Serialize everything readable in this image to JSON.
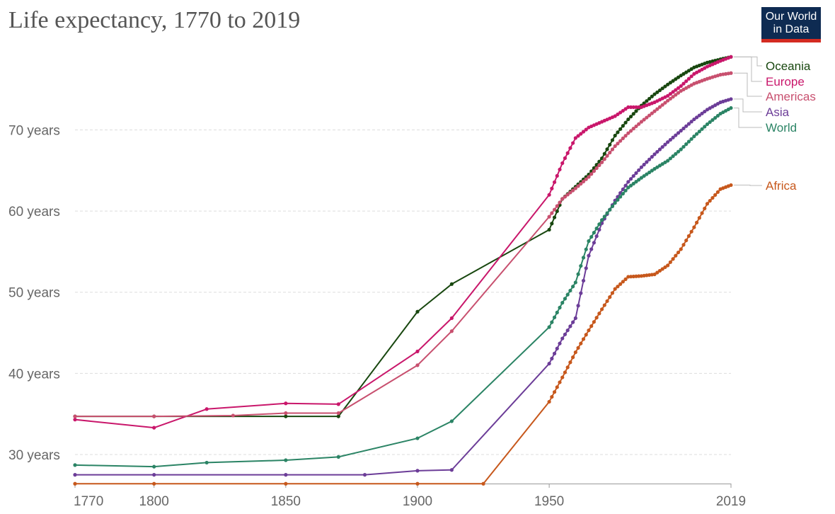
{
  "header": {
    "title": "Life expectancy, 1770 to 2019",
    "logo_line1": "Our World",
    "logo_line2": "in Data"
  },
  "chart_data": {
    "type": "line",
    "title": "Life expectancy, 1770 to 2019",
    "xlabel": "",
    "ylabel": "",
    "xlim": [
      1770,
      2019
    ],
    "ylim": [
      26.5,
      80
    ],
    "x_ticks": [
      {
        "value": 1770,
        "label": "1770"
      },
      {
        "value": 1800,
        "label": "1800"
      },
      {
        "value": 1850,
        "label": "1850"
      },
      {
        "value": 1900,
        "label": "1900"
      },
      {
        "value": 1950,
        "label": "1950"
      },
      {
        "value": 2019,
        "label": "2019"
      }
    ],
    "y_ticks": [
      {
        "value": 30,
        "label": "30 years"
      },
      {
        "value": 40,
        "label": "40 years"
      },
      {
        "value": 50,
        "label": "50 years"
      },
      {
        "value": 60,
        "label": "60 years"
      },
      {
        "value": 70,
        "label": "70 years"
      }
    ],
    "grid": true,
    "legend": "right, labels at line ends",
    "series": [
      {
        "name": "Oceania",
        "color": "#18470f",
        "points": [
          [
            1770,
            34.7
          ],
          [
            1800,
            34.7
          ],
          [
            1850,
            34.7
          ],
          [
            1870,
            34.7
          ],
          [
            1900,
            47.6
          ],
          [
            1913,
            51.0
          ],
          [
            1950,
            57.7
          ],
          [
            1955,
            61.5
          ],
          [
            1960,
            63.0
          ],
          [
            1965,
            64.5
          ],
          [
            1970,
            66.5
          ],
          [
            1975,
            69.3
          ],
          [
            1980,
            71.3
          ],
          [
            1985,
            73.0
          ],
          [
            1990,
            74.4
          ],
          [
            1995,
            75.6
          ],
          [
            2000,
            76.7
          ],
          [
            2005,
            77.7
          ],
          [
            2010,
            78.3
          ],
          [
            2015,
            78.7
          ],
          [
            2019,
            79.0
          ]
        ]
      },
      {
        "name": "Europe",
        "color": "#c9176b",
        "points": [
          [
            1770,
            34.3
          ],
          [
            1800,
            33.3
          ],
          [
            1820,
            35.6
          ],
          [
            1850,
            36.3
          ],
          [
            1870,
            36.2
          ],
          [
            1900,
            42.7
          ],
          [
            1913,
            46.8
          ],
          [
            1950,
            62.0
          ],
          [
            1955,
            65.9
          ],
          [
            1960,
            69.0
          ],
          [
            1965,
            70.3
          ],
          [
            1970,
            71.0
          ],
          [
            1975,
            71.7
          ],
          [
            1980,
            72.8
          ],
          [
            1985,
            72.8
          ],
          [
            1990,
            73.4
          ],
          [
            1995,
            74.2
          ],
          [
            2000,
            75.4
          ],
          [
            2005,
            76.9
          ],
          [
            2010,
            77.8
          ],
          [
            2015,
            78.5
          ],
          [
            2019,
            79.0
          ]
        ]
      },
      {
        "name": "Americas",
        "color": "#c8506f",
        "points": [
          [
            1770,
            34.7
          ],
          [
            1800,
            34.7
          ],
          [
            1830,
            34.8
          ],
          [
            1850,
            35.1
          ],
          [
            1870,
            35.1
          ],
          [
            1900,
            41.0
          ],
          [
            1913,
            45.2
          ],
          [
            1950,
            59.3
          ],
          [
            1955,
            61.5
          ],
          [
            1960,
            62.8
          ],
          [
            1965,
            64.2
          ],
          [
            1970,
            66.0
          ],
          [
            1975,
            68.0
          ],
          [
            1980,
            69.6
          ],
          [
            1985,
            71.0
          ],
          [
            1990,
            72.3
          ],
          [
            1995,
            73.6
          ],
          [
            2000,
            74.8
          ],
          [
            2005,
            75.7
          ],
          [
            2010,
            76.3
          ],
          [
            2015,
            76.8
          ],
          [
            2019,
            77.0
          ]
        ]
      },
      {
        "name": "Asia",
        "color": "#6c3d98",
        "points": [
          [
            1770,
            27.5
          ],
          [
            1800,
            27.5
          ],
          [
            1850,
            27.5
          ],
          [
            1880,
            27.5
          ],
          [
            1900,
            28.0
          ],
          [
            1913,
            28.1
          ],
          [
            1950,
            41.2
          ],
          [
            1955,
            44.3
          ],
          [
            1960,
            46.8
          ],
          [
            1965,
            54.5
          ],
          [
            1970,
            58.5
          ],
          [
            1975,
            61.3
          ],
          [
            1980,
            63.6
          ],
          [
            1985,
            65.4
          ],
          [
            1990,
            67.0
          ],
          [
            1995,
            68.5
          ],
          [
            2000,
            69.9
          ],
          [
            2005,
            71.3
          ],
          [
            2010,
            72.5
          ],
          [
            2015,
            73.4
          ],
          [
            2019,
            73.8
          ]
        ]
      },
      {
        "name": "World",
        "color": "#2b8465",
        "points": [
          [
            1770,
            28.7
          ],
          [
            1800,
            28.5
          ],
          [
            1820,
            29.0
          ],
          [
            1850,
            29.3
          ],
          [
            1870,
            29.7
          ],
          [
            1900,
            32.0
          ],
          [
            1913,
            34.1
          ],
          [
            1950,
            45.7
          ],
          [
            1955,
            48.7
          ],
          [
            1960,
            51.2
          ],
          [
            1965,
            56.3
          ],
          [
            1970,
            58.9
          ],
          [
            1975,
            61.0
          ],
          [
            1980,
            62.9
          ],
          [
            1985,
            64.1
          ],
          [
            1990,
            65.2
          ],
          [
            1995,
            66.2
          ],
          [
            2000,
            67.6
          ],
          [
            2005,
            69.2
          ],
          [
            2010,
            70.7
          ],
          [
            2015,
            72.0
          ],
          [
            2019,
            72.7
          ]
        ]
      },
      {
        "name": "Africa",
        "color": "#c7581c",
        "points": [
          [
            1770,
            26.4
          ],
          [
            1800,
            26.4
          ],
          [
            1850,
            26.4
          ],
          [
            1900,
            26.4
          ],
          [
            1925,
            26.4
          ],
          [
            1950,
            36.5
          ],
          [
            1955,
            39.5
          ],
          [
            1960,
            42.6
          ],
          [
            1965,
            45.3
          ],
          [
            1970,
            47.9
          ],
          [
            1975,
            50.4
          ],
          [
            1980,
            51.9
          ],
          [
            1985,
            52.0
          ],
          [
            1990,
            52.2
          ],
          [
            1995,
            53.3
          ],
          [
            2000,
            55.3
          ],
          [
            2005,
            58.0
          ],
          [
            2010,
            60.9
          ],
          [
            2015,
            62.7
          ],
          [
            2019,
            63.2
          ]
        ]
      }
    ]
  }
}
